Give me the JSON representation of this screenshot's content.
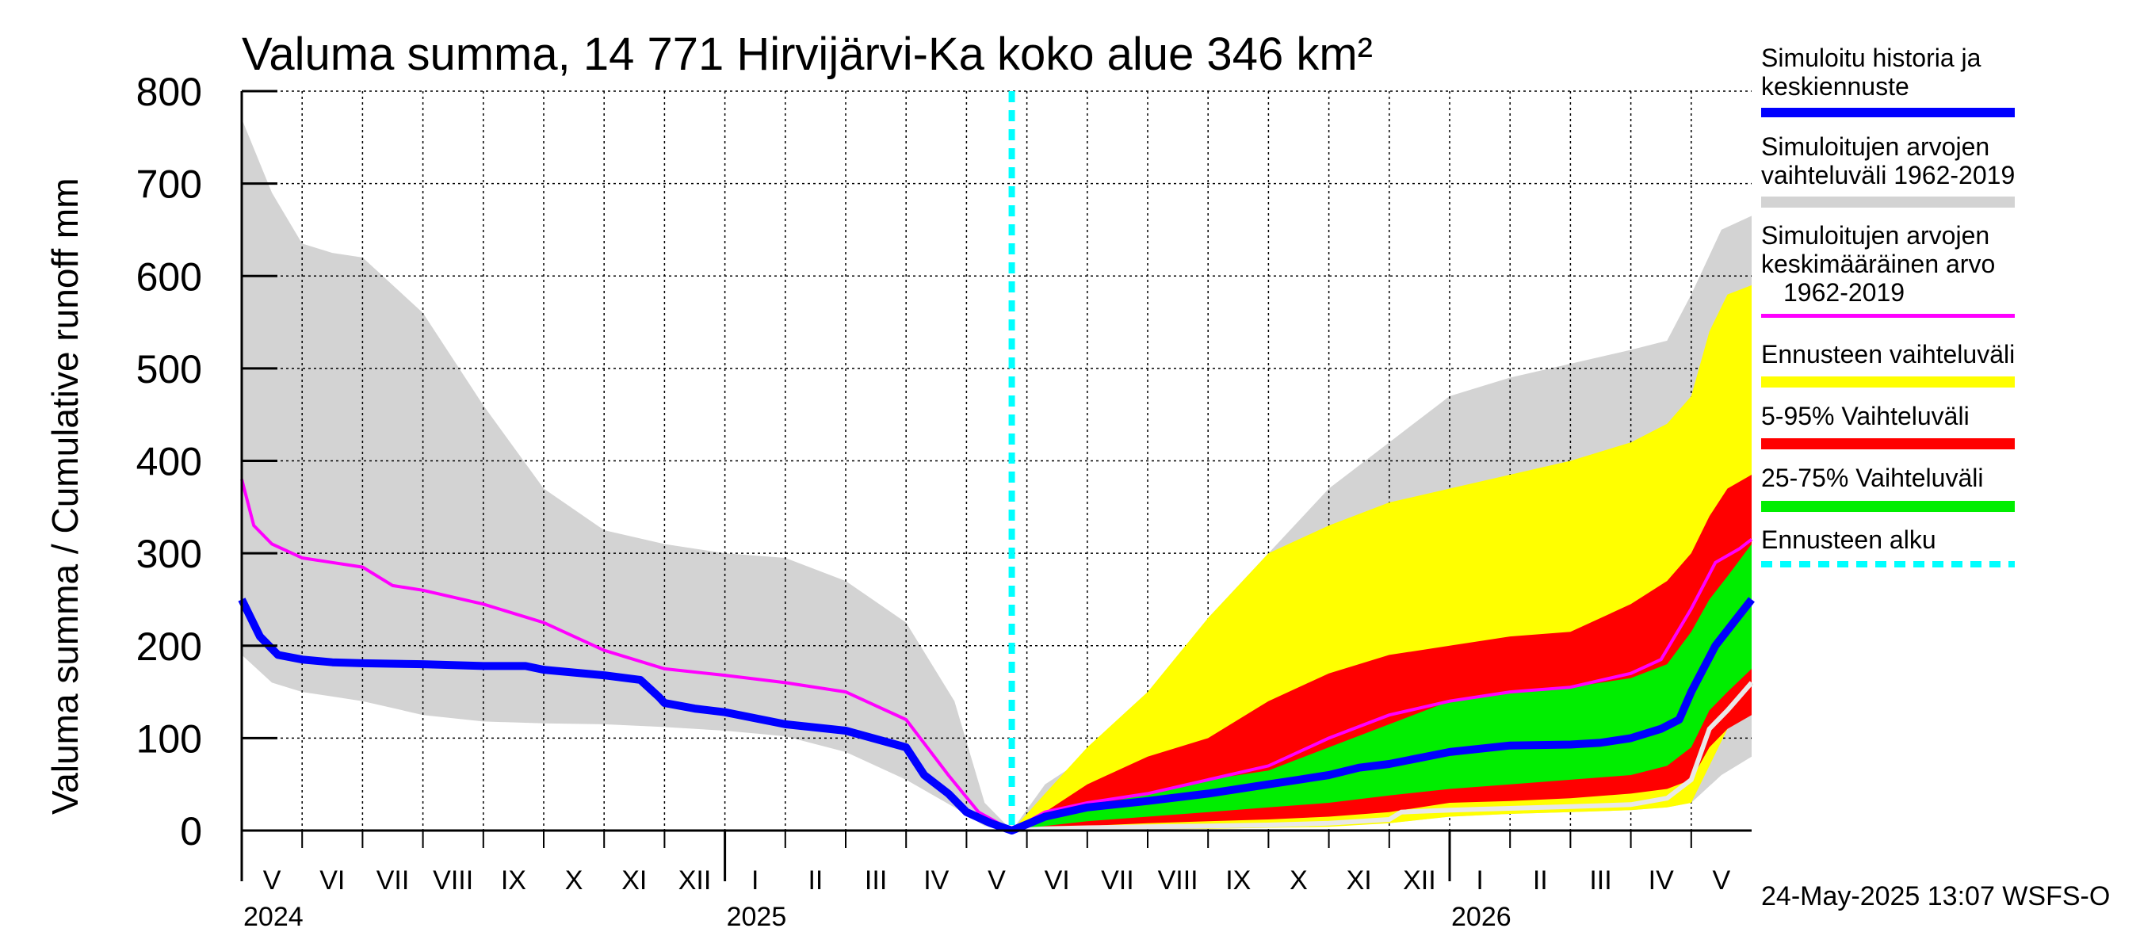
{
  "chart_data": {
    "type": "area",
    "title": "Valuma summa, 14 771 Hirvijärvi-Ka koko alue 346 km²",
    "ylabel": "Valuma summa / Cumulative runoff    mm",
    "ylim": [
      0,
      800
    ],
    "yticks": [
      0,
      100,
      200,
      300,
      400,
      500,
      600,
      700,
      800
    ],
    "ytick_labels": [
      "0",
      "100",
      "200",
      "300",
      "400",
      "500",
      "600",
      "700",
      "800"
    ],
    "xlim": [
      0,
      25
    ],
    "x_unit": "months since 2024-05-01",
    "forecast_start": 12.75,
    "months": [
      {
        "label": "V",
        "start": 0
      },
      {
        "label": "VI",
        "start": 1
      },
      {
        "label": "VII",
        "start": 2
      },
      {
        "label": "VIII",
        "start": 3
      },
      {
        "label": "IX",
        "start": 4
      },
      {
        "label": "X",
        "start": 5
      },
      {
        "label": "XI",
        "start": 6
      },
      {
        "label": "XII",
        "start": 7
      },
      {
        "label": "I",
        "start": 8
      },
      {
        "label": "II",
        "start": 9
      },
      {
        "label": "III",
        "start": 10
      },
      {
        "label": "IV",
        "start": 11
      },
      {
        "label": "V",
        "start": 12
      },
      {
        "label": "VI",
        "start": 13
      },
      {
        "label": "VII",
        "start": 14
      },
      {
        "label": "VIII",
        "start": 15
      },
      {
        "label": "IX",
        "start": 16
      },
      {
        "label": "X",
        "start": 17
      },
      {
        "label": "XI",
        "start": 18
      },
      {
        "label": "XII",
        "start": 19
      },
      {
        "label": "I",
        "start": 20
      },
      {
        "label": "II",
        "start": 21
      },
      {
        "label": "III",
        "start": 22
      },
      {
        "label": "IV",
        "start": 23
      },
      {
        "label": "V",
        "start": 24
      }
    ],
    "years": [
      {
        "label": "2024",
        "at": 0
      },
      {
        "label": "2025",
        "at": 8
      },
      {
        "label": "2026",
        "at": 20
      }
    ],
    "hist_range": {
      "x": [
        0,
        0.5,
        1,
        1.5,
        2,
        3,
        4,
        5,
        6,
        7,
        8,
        9,
        10,
        11,
        11.8,
        12.3,
        12.75,
        13.3,
        14,
        15,
        16,
        17,
        18,
        19,
        20,
        21,
        22,
        23,
        23.6,
        24,
        24.5,
        25
      ],
      "upper": [
        770,
        690,
        635,
        625,
        620,
        560,
        460,
        370,
        325,
        310,
        300,
        295,
        270,
        225,
        140,
        30,
        0,
        50,
        80,
        120,
        230,
        300,
        370,
        420,
        470,
        490,
        505,
        520,
        530,
        580,
        650,
        665
      ],
      "lower": [
        190,
        160,
        150,
        145,
        140,
        125,
        118,
        116,
        115,
        112,
        108,
        102,
        85,
        55,
        25,
        5,
        0,
        0,
        0,
        1,
        2,
        3,
        5,
        8,
        15,
        18,
        20,
        22,
        25,
        30,
        60,
        80
      ]
    },
    "hist_mean": {
      "x": [
        0,
        0.2,
        0.5,
        1,
        1.5,
        2,
        2.5,
        3,
        4,
        5,
        6,
        7,
        8,
        9,
        10,
        11,
        11.7,
        12.2,
        12.75,
        13.3,
        14,
        15,
        16,
        17,
        18,
        19,
        20,
        21,
        22,
        23,
        23.5,
        24,
        24.4,
        24.8,
        25
      ],
      "values": [
        380,
        330,
        310,
        295,
        290,
        285,
        265,
        260,
        245,
        225,
        195,
        175,
        168,
        160,
        150,
        120,
        60,
        20,
        0,
        20,
        30,
        40,
        55,
        70,
        100,
        125,
        140,
        150,
        155,
        170,
        185,
        240,
        290,
        305,
        315
      ]
    },
    "forecast_range": {
      "x": [
        12.75,
        13.3,
        14,
        15,
        16,
        17,
        18,
        19,
        20,
        21,
        22,
        23,
        23.6,
        24,
        24.3,
        24.6,
        25
      ],
      "upper": [
        0,
        40,
        90,
        150,
        230,
        300,
        330,
        355,
        370,
        385,
        400,
        420,
        440,
        470,
        540,
        580,
        590
      ],
      "lower": [
        0,
        0,
        1,
        2,
        2,
        3,
        4,
        8,
        15,
        18,
        20,
        22,
        25,
        30,
        70,
        110,
        130
      ]
    },
    "p5_95": {
      "x": [
        12.75,
        13.3,
        14,
        15,
        16,
        17,
        18,
        19,
        20,
        21,
        22,
        23,
        23.6,
        24,
        24.3,
        24.6,
        25
      ],
      "upper": [
        0,
        20,
        50,
        80,
        100,
        140,
        170,
        190,
        200,
        210,
        215,
        245,
        270,
        300,
        340,
        370,
        385
      ],
      "lower": [
        0,
        3,
        5,
        8,
        10,
        12,
        15,
        20,
        30,
        32,
        35,
        40,
        45,
        55,
        90,
        110,
        125
      ]
    },
    "p25_75": {
      "x": [
        12.75,
        13.3,
        14,
        15,
        16,
        17,
        18,
        19,
        20,
        21,
        22,
        23,
        23.6,
        24,
        24.3,
        24.6,
        25
      ],
      "upper": [
        0,
        12,
        25,
        40,
        55,
        65,
        90,
        115,
        140,
        150,
        155,
        165,
        180,
        215,
        250,
        275,
        310
      ],
      "lower": [
        0,
        5,
        10,
        15,
        20,
        25,
        30,
        38,
        45,
        50,
        55,
        60,
        70,
        90,
        130,
        150,
        175
      ]
    },
    "forecast_low_line": {
      "x": [
        12.75,
        13.3,
        14,
        15,
        16,
        17,
        18,
        19,
        19.2,
        20,
        21,
        22,
        23,
        23.6,
        24,
        24.3,
        24.6,
        25
      ],
      "values": [
        0,
        2,
        3,
        4,
        5,
        6,
        8,
        12,
        20,
        22,
        24,
        26,
        28,
        35,
        55,
        110,
        130,
        160
      ]
    },
    "simulated_median": {
      "x": [
        0,
        0.3,
        0.6,
        1,
        1.5,
        2,
        3,
        4,
        4.7,
        5,
        6,
        6.6,
        6.9,
        7,
        7.5,
        8,
        9,
        10,
        11,
        11.3,
        11.7,
        12,
        12.4,
        12.75,
        13.3,
        14,
        15,
        16,
        17,
        17.5,
        18,
        18.5,
        19,
        20,
        21,
        22,
        22.5,
        23,
        23.5,
        23.8,
        24,
        24.4,
        24.7,
        25
      ],
      "values": [
        250,
        210,
        190,
        185,
        182,
        181,
        180,
        178,
        178,
        174,
        168,
        163,
        145,
        138,
        132,
        128,
        115,
        108,
        90,
        60,
        40,
        20,
        8,
        0,
        15,
        25,
        32,
        40,
        50,
        55,
        60,
        68,
        72,
        85,
        92,
        93,
        95,
        100,
        110,
        120,
        150,
        200,
        225,
        250
      ]
    },
    "legend": [
      {
        "label": "Simuloitu historia ja keskiennuste",
        "color": "#0000ff"
      },
      {
        "label": "Simuloitujen arvojen vaihteluväli 1962-2019",
        "color": "#d3d3d3"
      },
      {
        "label": "Simuloitujen arvojen keskimääräinen arvo 1962-2019",
        "color": "#ff00ff"
      },
      {
        "label": "Ennusteen vaihteluväli",
        "color": "#ffff00"
      },
      {
        "label": "5-95% Vaihteluväli",
        "color": "#ff0000"
      },
      {
        "label": "25-75% Vaihteluväli",
        "color": "#00ee00"
      },
      {
        "label": "Ennusteen alku",
        "color": "#00ffff"
      }
    ],
    "timestamp": "24-May-2025 13:07 WSFS-O"
  },
  "text": {
    "legend_1a": "Simuloitu historia ja",
    "legend_1b": "keskiennuste",
    "legend_2a": "Simuloitujen arvojen",
    "legend_2b": "vaihteluväli 1962-2019",
    "legend_3a": "Simuloitujen arvojen",
    "legend_3b": "keskimääräinen arvo",
    "legend_3c": "1962-2019",
    "legend_4": "Ennusteen vaihteluväli",
    "legend_5": "5-95% Vaihteluväli",
    "legend_6": "25-75% Vaihteluväli",
    "legend_7": "Ennusteen alku"
  },
  "colors": {
    "hist_band": "#d3d3d3",
    "forecast_band": "#ffff00",
    "p5_95_band": "#ff0000",
    "p25_75_band": "#00ee00",
    "mean_line": "#ff00ff",
    "median_line": "#0000ff",
    "low_line": "#e8e8e8",
    "forecast_marker": "#00ffff"
  }
}
